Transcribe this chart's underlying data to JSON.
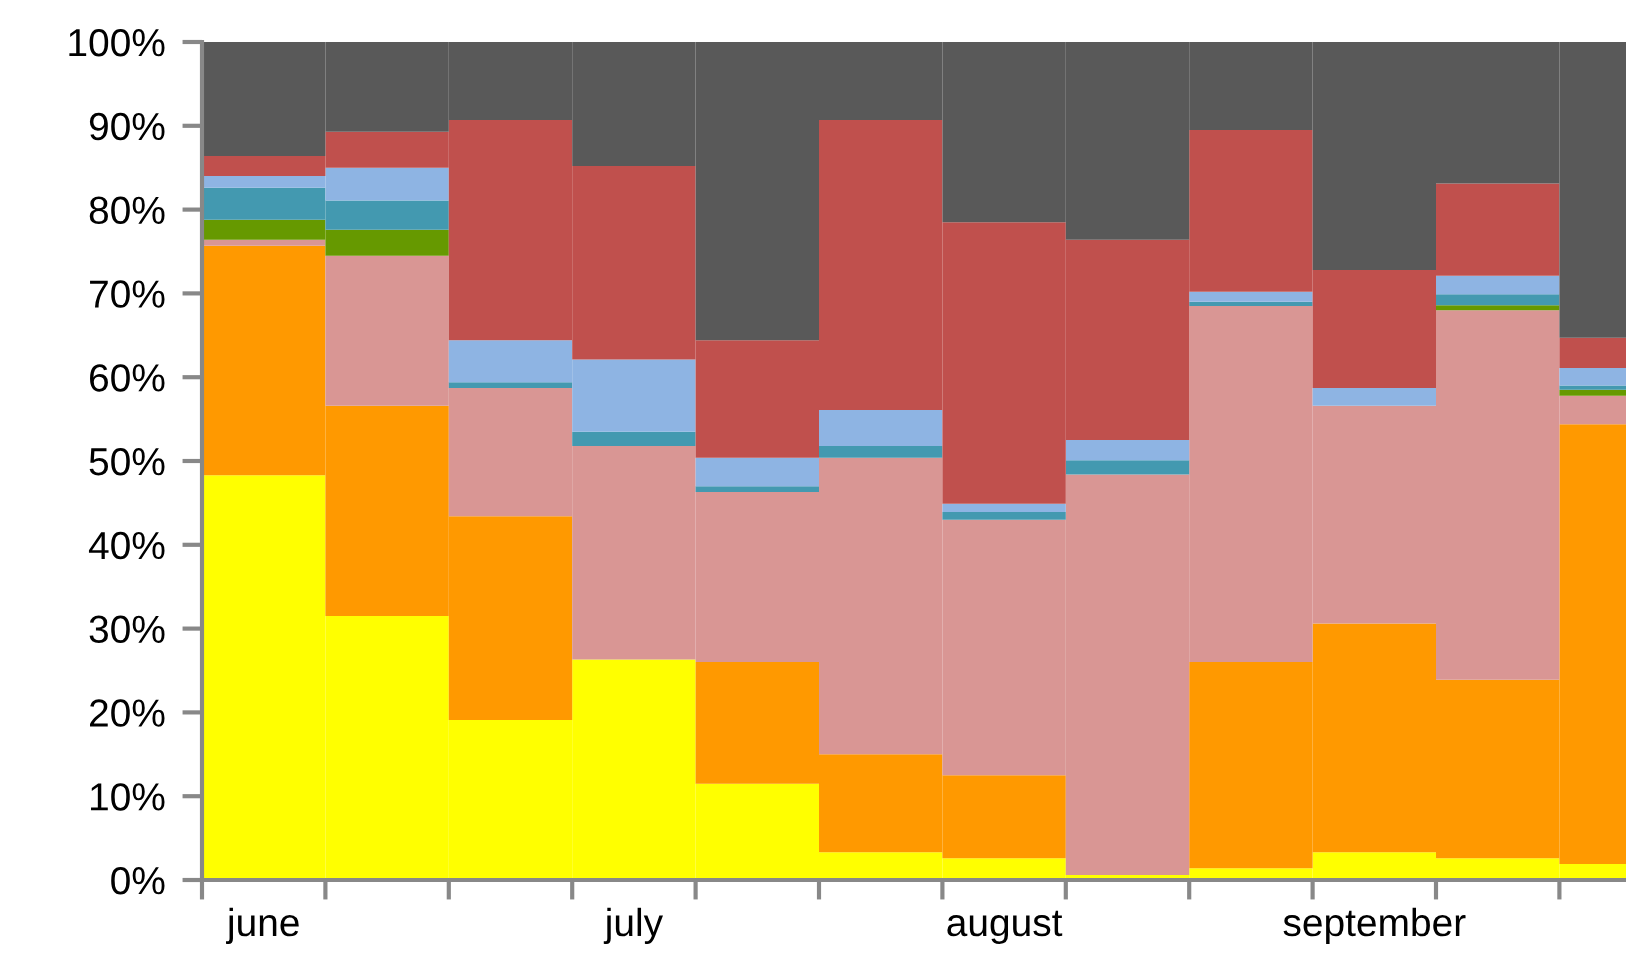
{
  "chart_data": {
    "type": "bar",
    "stacked": true,
    "categories": [
      "june",
      null,
      null,
      "july",
      null,
      null,
      "august",
      null,
      null,
      "september",
      null,
      null
    ],
    "series": [
      {
        "color": "#ffff00",
        "values": [
          48.3,
          31.5,
          19.1,
          26.3,
          11.5,
          3.3,
          2.6,
          0.6,
          1.4,
          3.3,
          2.6,
          1.9
        ]
      },
      {
        "color": "#ff9900",
        "values": [
          27.4,
          25.1,
          24.3,
          0,
          14.5,
          11.7,
          9.9,
          0,
          24.6,
          27.3,
          21.3,
          52.5
        ]
      },
      {
        "color": "#d99694",
        "values": [
          0.7,
          17.9,
          15.3,
          25.5,
          20.3,
          35.4,
          30.5,
          47.8,
          42.5,
          26.0,
          44.1,
          3.4
        ]
      },
      {
        "color": "#669900",
        "values": [
          2.4,
          3.1,
          0,
          0,
          0,
          0,
          0,
          0,
          0,
          0,
          0.6,
          0.7
        ]
      },
      {
        "color": "#4399b0",
        "values": [
          3.8,
          3.5,
          0.7,
          1.7,
          0.7,
          1.4,
          0.9,
          1.7,
          0.5,
          0,
          1.3,
          0.5
        ]
      },
      {
        "color": "#8eb4e3",
        "values": [
          1.4,
          3.9,
          5.0,
          8.6,
          3.4,
          4.3,
          1.0,
          2.4,
          1.2,
          2.1,
          2.2,
          2.1
        ]
      },
      {
        "color": "#c0504d",
        "values": [
          2.4,
          4.3,
          26.3,
          23.1,
          14.0,
          34.6,
          33.6,
          23.9,
          19.3,
          14.1,
          11.0,
          3.6
        ]
      },
      {
        "color": "#595959",
        "values": [
          13.6,
          10.7,
          9.3,
          14.8,
          35.6,
          9.3,
          21.5,
          23.6,
          10.5,
          27.2,
          16.9,
          35.3
        ]
      }
    ],
    "ylim": [
      0,
      100
    ],
    "yticks": [
      {
        "value": 0,
        "label": "0%"
      },
      {
        "value": 10,
        "label": "10%"
      },
      {
        "value": 20,
        "label": "20%"
      },
      {
        "value": 30,
        "label": "30%"
      },
      {
        "value": 40,
        "label": "40%"
      },
      {
        "value": 50,
        "label": "50%"
      },
      {
        "value": 60,
        "label": "60%"
      },
      {
        "value": 70,
        "label": "70%"
      },
      {
        "value": 80,
        "label": "80%"
      },
      {
        "value": 90,
        "label": "90%"
      },
      {
        "value": 100,
        "label": "100%"
      }
    ],
    "grid": false
  }
}
